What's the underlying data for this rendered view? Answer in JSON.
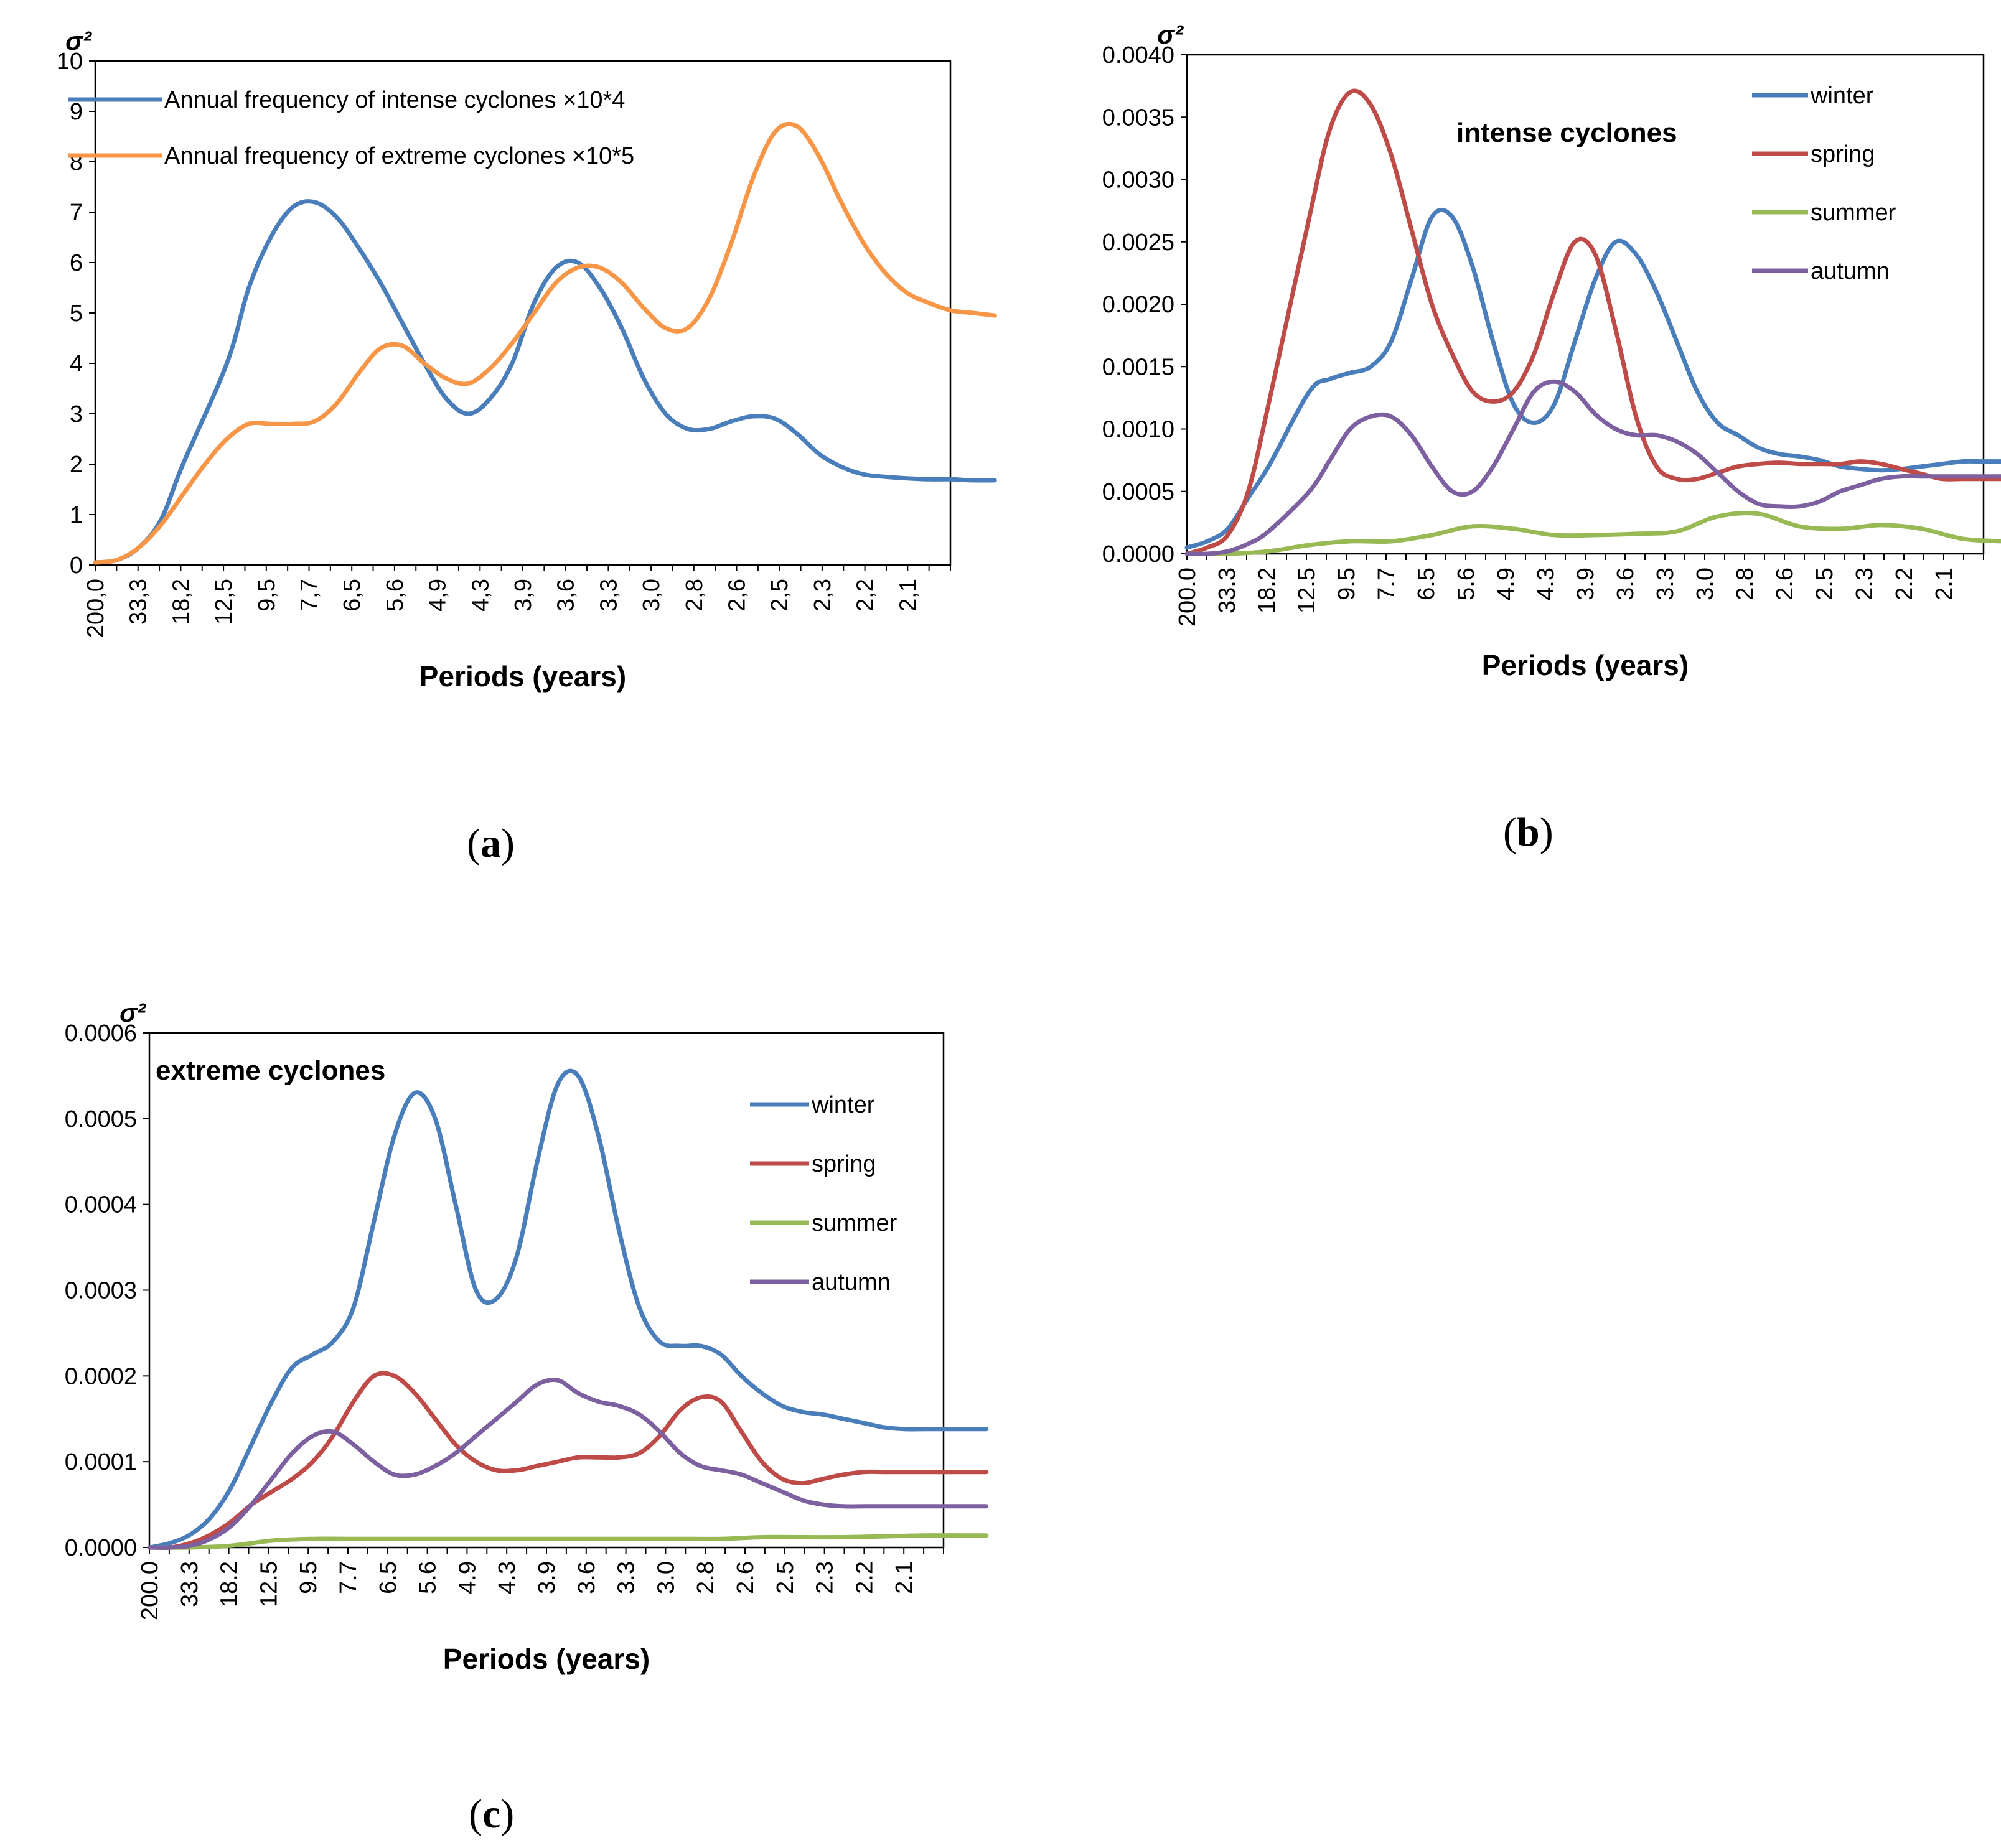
{
  "colors": {
    "blue": "#4a7ebb",
    "orange": "#f79646",
    "red": "#be4b48",
    "green": "#98b954",
    "purple": "#7d60a0"
  },
  "panels": {
    "a": {
      "letter": "a"
    },
    "b": {
      "letter": "b"
    },
    "c": {
      "letter": "c"
    }
  },
  "chart_data": [
    {
      "id": "a",
      "type": "line",
      "title": "",
      "ylabel": "σ²",
      "xlabel": "Periods (years)",
      "ylim": [
        0,
        10
      ],
      "yticks": [
        "0",
        "1",
        "2",
        "3",
        "4",
        "5",
        "6",
        "7",
        "8",
        "9",
        "10"
      ],
      "categories": [
        "200,0",
        "33,3",
        "18,2",
        "12,5",
        "9,5",
        "7,7",
        "6,5",
        "5,6",
        "4,9",
        "4,3",
        "3,9",
        "3,6",
        "3,3",
        "3,0",
        "2,8",
        "2,6",
        "2,5",
        "2,3",
        "2,2",
        "2,1"
      ],
      "legend_position": "top-left",
      "annotation": "",
      "series": [
        {
          "name": "Annual frequency of intense cyclones ×10*4",
          "color": "blue",
          "x": [
            0,
            0.5,
            1,
            1.5,
            2,
            3,
            3.5,
            4,
            4.5,
            5,
            5.5,
            6,
            6.5,
            7,
            7.5,
            8,
            8.5,
            9,
            9.5,
            10,
            10.5,
            11,
            11.5,
            12,
            12.5,
            13,
            13.5,
            14,
            14.5,
            15,
            15.5,
            16,
            16.5,
            17,
            17.5,
            18,
            18.5,
            19,
            19.5,
            20,
            20.5
          ],
          "values": [
            0.05,
            0.1,
            0.35,
            0.9,
            2.0,
            4.0,
            5.5,
            6.5,
            7.1,
            7.2,
            6.9,
            6.3,
            5.6,
            4.8,
            4.0,
            3.3,
            3.0,
            3.3,
            4.0,
            5.2,
            5.9,
            6.0,
            5.5,
            4.7,
            3.7,
            3.0,
            2.7,
            2.7,
            2.85,
            2.95,
            2.9,
            2.6,
            2.2,
            1.95,
            1.8,
            1.75,
            1.72,
            1.7,
            1.7,
            1.68,
            1.68
          ]
        },
        {
          "name": "Annual frequency of extreme cyclones ×10*5",
          "color": "orange",
          "x": [
            0,
            0.5,
            1,
            1.5,
            2,
            2.5,
            3,
            3.5,
            4,
            4.5,
            5,
            5.5,
            6,
            6.5,
            7,
            7.5,
            8,
            8.5,
            9,
            9.5,
            10,
            10.5,
            11,
            11.5,
            12,
            12.5,
            13,
            13.5,
            14,
            14.5,
            15,
            15.5,
            16,
            16.5,
            17,
            17.5,
            18,
            18.5,
            19,
            19.5,
            20,
            20.5
          ],
          "values": [
            0.05,
            0.1,
            0.35,
            0.8,
            1.4,
            2.0,
            2.5,
            2.8,
            2.8,
            2.8,
            2.85,
            3.2,
            3.8,
            4.3,
            4.35,
            4.0,
            3.7,
            3.6,
            3.9,
            4.4,
            5.0,
            5.6,
            5.9,
            5.9,
            5.6,
            5.1,
            4.7,
            4.7,
            5.3,
            6.4,
            7.7,
            8.6,
            8.7,
            8.1,
            7.2,
            6.4,
            5.8,
            5.4,
            5.2,
            5.05,
            5.0,
            4.95
          ]
        }
      ]
    },
    {
      "id": "b",
      "type": "line",
      "title": "",
      "ylabel": "σ²",
      "xlabel": "Periods (years)",
      "ylim": [
        0,
        0.004
      ],
      "yticks": [
        "0.0000",
        "0.0005",
        "0.0010",
        "0.0015",
        "0.0020",
        "0.0025",
        "0.0030",
        "0.0035",
        "0.0040"
      ],
      "categories": [
        "200.0",
        "33.3",
        "18.2",
        "12.5",
        "9.5",
        "7.7",
        "6.5",
        "5.6",
        "4.9",
        "4.3",
        "3.9",
        "3.6",
        "3.3",
        "3.0",
        "2.8",
        "2.6",
        "2.5",
        "2.3",
        "2.2",
        "2.1"
      ],
      "legend_position": "top-right",
      "annotation": "intense cyclones",
      "series": [
        {
          "name": "winter",
          "color": "blue",
          "x": [
            0,
            0.5,
            1,
            1.5,
            2,
            3,
            3.5,
            4,
            4.5,
            5,
            5.5,
            6,
            6.5,
            7,
            7.5,
            8,
            8.5,
            9,
            9.5,
            10,
            10.5,
            11,
            11.5,
            12,
            12.5,
            13,
            13.5,
            14,
            14.5,
            15,
            15.5,
            16,
            16.5,
            17,
            17.5,
            18,
            18.5,
            19,
            19.5,
            20,
            20.5
          ],
          "values": [
            5e-05,
            0.0001,
            0.0002,
            0.00045,
            0.0007,
            0.0013,
            0.0014,
            0.00145,
            0.0015,
            0.0017,
            0.0022,
            0.0027,
            0.0027,
            0.0023,
            0.0017,
            0.0012,
            0.00105,
            0.0012,
            0.0017,
            0.0022,
            0.0025,
            0.0024,
            0.0021,
            0.0017,
            0.0013,
            0.00105,
            0.00095,
            0.00085,
            0.0008,
            0.00078,
            0.00075,
            0.0007,
            0.00068,
            0.00067,
            0.00068,
            0.0007,
            0.00072,
            0.00074,
            0.00074,
            0.00074,
            0.00074
          ]
        },
        {
          "name": "spring",
          "color": "red",
          "x": [
            0,
            0.5,
            1,
            1.5,
            2,
            3,
            3.5,
            4,
            4.5,
            5,
            5.5,
            6,
            6.5,
            7,
            7.5,
            8,
            8.5,
            9,
            9.5,
            10,
            10.5,
            11,
            11.5,
            12,
            12.5,
            13,
            13.5,
            14,
            14.5,
            15,
            15.5,
            16,
            16.5,
            17,
            17.5,
            18,
            18.5,
            19,
            19.5,
            20,
            20.5
          ],
          "values": [
            0.0,
            5e-05,
            0.00015,
            0.0005,
            0.0012,
            0.0027,
            0.0034,
            0.0037,
            0.0036,
            0.0032,
            0.0026,
            0.002,
            0.0016,
            0.0013,
            0.00122,
            0.0013,
            0.0016,
            0.0021,
            0.0025,
            0.0024,
            0.0018,
            0.0011,
            0.0007,
            0.0006,
            0.0006,
            0.00065,
            0.0007,
            0.00072,
            0.00073,
            0.00072,
            0.00072,
            0.00072,
            0.00074,
            0.00072,
            0.00068,
            0.00064,
            0.0006,
            0.0006,
            0.0006,
            0.0006,
            0.0006
          ]
        },
        {
          "name": "summer",
          "color": "green",
          "x": [
            0,
            1,
            2,
            3,
            4,
            5,
            6,
            7,
            8,
            9,
            10,
            11,
            12,
            13,
            14,
            15,
            16,
            17,
            18,
            19,
            20,
            20.5
          ],
          "values": [
            0.0,
            0.0,
            2e-05,
            7e-05,
            0.0001,
            0.0001,
            0.00015,
            0.00022,
            0.0002,
            0.00015,
            0.00015,
            0.00016,
            0.00018,
            0.0003,
            0.00032,
            0.00022,
            0.0002,
            0.00023,
            0.0002,
            0.00012,
            0.0001,
            0.0001
          ]
        },
        {
          "name": "autumn",
          "color": "purple",
          "x": [
            0,
            0.5,
            1,
            1.5,
            2,
            3,
            3.5,
            4,
            4.5,
            5,
            5.5,
            6,
            6.5,
            7,
            7.5,
            8,
            8.5,
            9,
            9.5,
            10,
            10.5,
            11,
            11.5,
            12,
            12.5,
            13,
            13.5,
            14,
            14.5,
            15,
            15.5,
            16,
            16.5,
            17,
            17.5,
            18,
            18.5,
            19,
            19.5,
            20,
            20.5
          ],
          "values": [
            0.0,
            0.0,
            2e-05,
            8e-05,
            0.00018,
            0.0005,
            0.00075,
            0.001,
            0.0011,
            0.0011,
            0.00095,
            0.0007,
            0.0005,
            0.0005,
            0.0007,
            0.001,
            0.0013,
            0.00138,
            0.0013,
            0.00112,
            0.001,
            0.00095,
            0.00095,
            0.0009,
            0.0008,
            0.00065,
            0.0005,
            0.0004,
            0.00038,
            0.00038,
            0.00042,
            0.0005,
            0.00055,
            0.0006,
            0.00062,
            0.00062,
            0.00062,
            0.00062,
            0.00062,
            0.00062,
            0.00062
          ]
        }
      ]
    },
    {
      "id": "c",
      "type": "line",
      "title": "",
      "ylabel": "σ²",
      "xlabel": "Periods (years)",
      "ylim": [
        0,
        0.0006
      ],
      "yticks": [
        "0.0000",
        "0.0001",
        "0.0002",
        "0.0003",
        "0.0004",
        "0.0005",
        "0.0006"
      ],
      "categories": [
        "200.0",
        "33.3",
        "18.2",
        "12.5",
        "9.5",
        "7.7",
        "6.5",
        "5.6",
        "4.9",
        "4.3",
        "3.9",
        "3.6",
        "3.3",
        "3.0",
        "2.8",
        "2.6",
        "2.5",
        "2.3",
        "2.2",
        "2.1"
      ],
      "legend_position": "top-right",
      "annotation": "extreme cyclones",
      "series": [
        {
          "name": "winter",
          "color": "blue",
          "x": [
            0,
            0.5,
            1,
            1.5,
            2,
            2.5,
            3,
            3.5,
            4,
            4.5,
            5,
            5.5,
            6,
            6.5,
            7,
            7.5,
            8,
            8.5,
            9,
            9.5,
            10,
            10.5,
            11,
            11.5,
            12,
            12.5,
            13,
            13.5,
            14,
            14.5,
            15,
            15.5,
            16,
            16.5,
            17,
            17.5,
            18,
            18.5,
            19,
            19.5,
            20,
            20.5
          ],
          "values": [
            0.0,
            5e-06,
            1.5e-05,
            3.5e-05,
            7e-05,
            0.00012,
            0.00017,
            0.00021,
            0.000225,
            0.00024,
            0.00028,
            0.00038,
            0.00048,
            0.00053,
            0.0005,
            0.0004,
            0.0003,
            0.00029,
            0.00034,
            0.00045,
            0.00054,
            0.00055,
            0.00048,
            0.00037,
            0.00028,
            0.00024,
            0.000235,
            0.000235,
            0.000225,
            0.0002,
            0.00018,
            0.000165,
            0.000158,
            0.000155,
            0.00015,
            0.000145,
            0.00014,
            0.000138,
            0.000138,
            0.000138,
            0.000138,
            0.000138
          ]
        },
        {
          "name": "spring",
          "color": "red",
          "x": [
            0,
            0.5,
            1,
            1.5,
            2,
            2.5,
            3,
            3.5,
            4,
            4.5,
            5,
            5.5,
            6,
            6.5,
            7,
            7.5,
            8,
            8.5,
            9,
            9.5,
            10,
            10.5,
            11,
            11.5,
            12,
            12.5,
            13,
            13.5,
            14,
            14.5,
            15,
            15.5,
            16,
            16.5,
            17,
            17.5,
            18,
            18.5,
            19,
            19.5,
            20,
            20.5
          ],
          "values": [
            0.0,
            0.0,
            5e-06,
            1.5e-05,
            3e-05,
            5e-05,
            6.5e-05,
            8e-05,
            0.0001,
            0.00013,
            0.00017,
            0.0002,
            0.0002,
            0.00018,
            0.00015,
            0.00012,
            0.0001,
            9e-05,
            9e-05,
            9.5e-05,
            0.0001,
            0.000105,
            0.000105,
            0.000105,
            0.00011,
            0.00013,
            0.00016,
            0.000175,
            0.00017,
            0.000135,
            0.0001,
            8e-05,
            7.5e-05,
            8e-05,
            8.5e-05,
            8.8e-05,
            8.8e-05,
            8.8e-05,
            8.8e-05,
            8.8e-05,
            8.8e-05,
            8.8e-05
          ]
        },
        {
          "name": "summer",
          "color": "green",
          "x": [
            0,
            1,
            2,
            3,
            4,
            5,
            6,
            7,
            8,
            9,
            10,
            11,
            12,
            13,
            14,
            15,
            16,
            17,
            18,
            19,
            20,
            20.5
          ],
          "values": [
            0.0,
            0.0,
            2e-06,
            8e-06,
            1e-05,
            1e-05,
            1e-05,
            1e-05,
            1e-05,
            1e-05,
            1e-05,
            1e-05,
            1e-05,
            1e-05,
            1e-05,
            1.2e-05,
            1.2e-05,
            1.2e-05,
            1.3e-05,
            1.4e-05,
            1.4e-05,
            1.4e-05
          ]
        },
        {
          "name": "autumn",
          "color": "purple",
          "x": [
            0,
            0.5,
            1,
            1.5,
            2,
            2.5,
            3,
            3.5,
            4,
            4.5,
            5,
            5.5,
            6,
            6.5,
            7,
            7.5,
            8,
            8.5,
            9,
            9.5,
            10,
            10.5,
            11,
            11.5,
            12,
            12.5,
            13,
            13.5,
            14,
            14.5,
            15,
            15.5,
            16,
            16.5,
            17,
            17.5,
            18,
            18.5,
            19,
            19.5,
            20,
            20.5
          ],
          "values": [
            0.0,
            0.0,
            2e-06,
            1e-05,
            2.5e-05,
            5e-05,
            8e-05,
            0.00011,
            0.00013,
            0.000135,
            0.00012,
            0.0001,
            8.5e-05,
            8.5e-05,
            9.5e-05,
            0.00011,
            0.00013,
            0.00015,
            0.00017,
            0.00019,
            0.000195,
            0.00018,
            0.00017,
            0.000165,
            0.000155,
            0.000135,
            0.00011,
            9.5e-05,
            9e-05,
            8.5e-05,
            7.5e-05,
            6.5e-05,
            5.5e-05,
            5e-05,
            4.8e-05,
            4.8e-05,
            4.8e-05,
            4.8e-05,
            4.8e-05,
            4.8e-05,
            4.8e-05,
            4.8e-05
          ]
        }
      ]
    }
  ]
}
